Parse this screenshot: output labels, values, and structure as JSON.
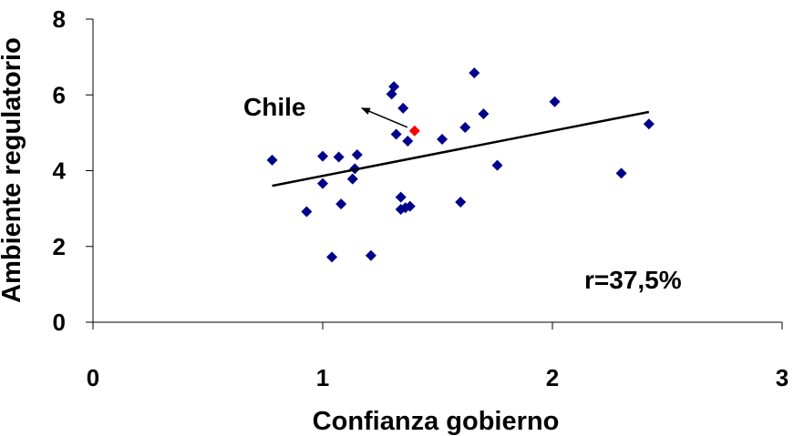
{
  "chart_data": {
    "type": "scatter",
    "title": "",
    "xlabel": "Confianza gobierno",
    "ylabel": "Ambiente regulatorio",
    "xlim": [
      0,
      3
    ],
    "ylim": [
      0,
      8
    ],
    "xticks": [
      0,
      1,
      2,
      3
    ],
    "yticks": [
      0,
      2,
      4,
      6,
      8
    ],
    "grid": false,
    "legend": "none",
    "marker_color": "#00008B",
    "highlight_color": "#FF0000",
    "series": [
      {
        "points": [
          {
            "x": 0.78,
            "y": 4.28
          },
          {
            "x": 0.93,
            "y": 2.92
          },
          {
            "x": 1.0,
            "y": 4.38
          },
          {
            "x": 1.0,
            "y": 3.66
          },
          {
            "x": 1.04,
            "y": 1.72
          },
          {
            "x": 1.07,
            "y": 4.36
          },
          {
            "x": 1.08,
            "y": 3.12
          },
          {
            "x": 1.13,
            "y": 3.78
          },
          {
            "x": 1.14,
            "y": 4.05
          },
          {
            "x": 1.15,
            "y": 4.42
          },
          {
            "x": 1.21,
            "y": 1.76
          },
          {
            "x": 1.3,
            "y": 6.02
          },
          {
            "x": 1.31,
            "y": 6.22
          },
          {
            "x": 1.32,
            "y": 4.96
          },
          {
            "x": 1.34,
            "y": 3.3
          },
          {
            "x": 1.34,
            "y": 2.98
          },
          {
            "x": 1.35,
            "y": 5.65
          },
          {
            "x": 1.36,
            "y": 3.02
          },
          {
            "x": 1.37,
            "y": 4.78
          },
          {
            "x": 1.38,
            "y": 3.06
          },
          {
            "x": 1.52,
            "y": 4.83
          },
          {
            "x": 1.6,
            "y": 3.17
          },
          {
            "x": 1.62,
            "y": 5.14
          },
          {
            "x": 1.66,
            "y": 6.58
          },
          {
            "x": 1.7,
            "y": 5.5
          },
          {
            "x": 1.76,
            "y": 4.14
          },
          {
            "x": 2.01,
            "y": 5.82
          },
          {
            "x": 2.3,
            "y": 3.93
          },
          {
            "x": 2.42,
            "y": 5.23
          }
        ],
        "highlight": {
          "x": 1.4,
          "y": 5.05
        }
      }
    ],
    "trendline": {
      "x": [
        0.78,
        2.42
      ],
      "y": [
        3.6,
        5.55
      ]
    },
    "annotations": {
      "chile_label": "Chile",
      "chile_arrow_to": {
        "x": 1.17,
        "y": 5.65
      },
      "r_label": "r=37,5%"
    }
  }
}
